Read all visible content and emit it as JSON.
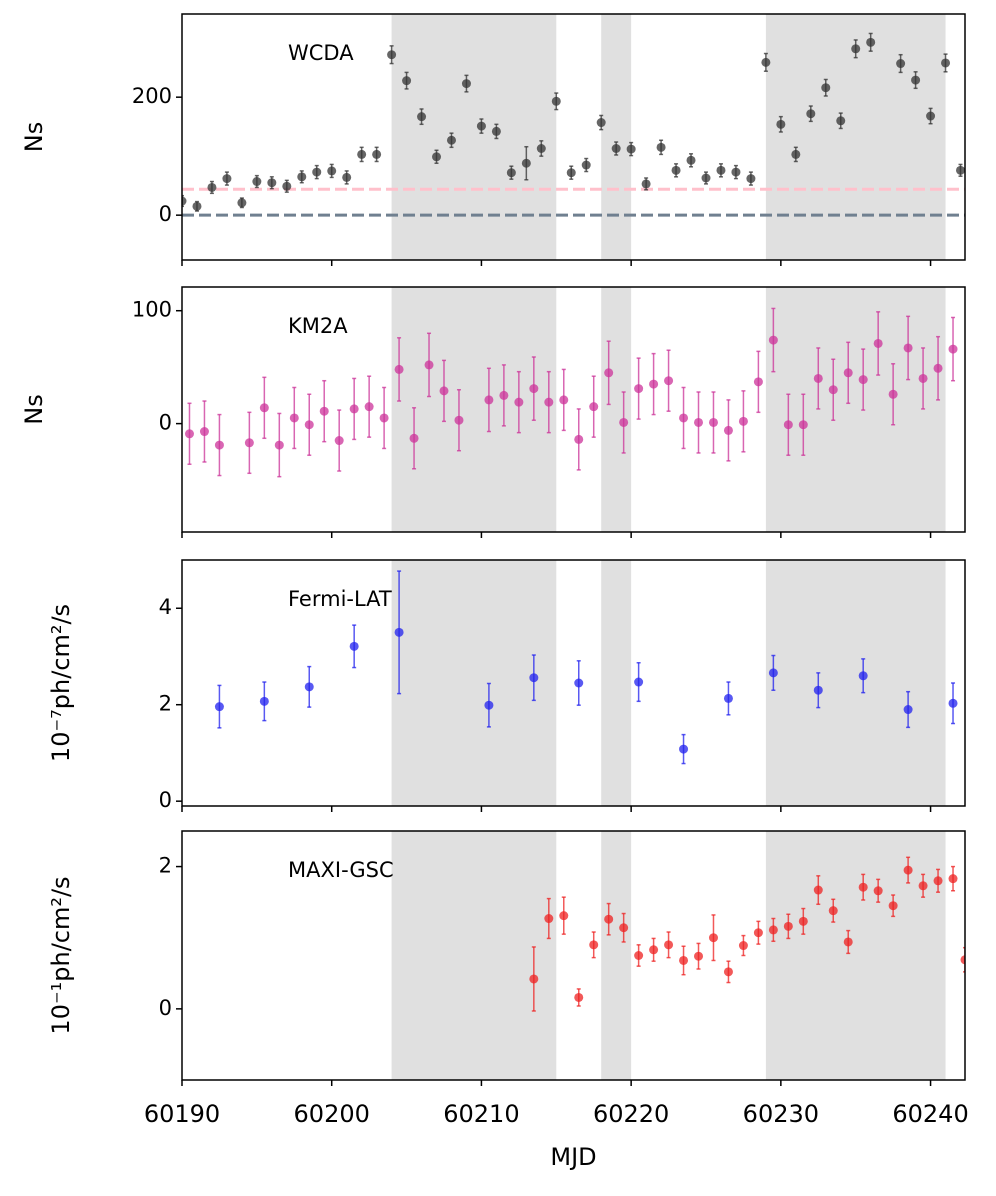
{
  "chart_data": [
    {
      "type": "scatter",
      "label": "WCDA",
      "ylabel": "Ns",
      "color": "#333333",
      "x": [
        60190,
        60191,
        60192,
        60193,
        60194,
        60195,
        60196,
        60197,
        60198,
        60199,
        60200,
        60201,
        60202,
        60203,
        60204,
        60205,
        60206,
        60207,
        60208,
        60209,
        60210,
        60211,
        60212,
        60213,
        60214,
        60215,
        60216,
        60217,
        60218,
        60219,
        60220,
        60221,
        60222,
        60223,
        60224,
        60225,
        60226,
        60227,
        60228,
        60229,
        60230,
        60231,
        60232,
        60233,
        60234,
        60235,
        60236,
        60238,
        60239,
        60240,
        60241,
        60242
      ],
      "values": [
        24,
        15,
        47,
        62,
        21,
        57,
        55,
        49,
        65,
        73,
        75,
        64,
        103,
        103,
        272,
        228,
        167,
        99,
        127,
        223,
        151,
        142,
        72,
        88,
        113,
        193,
        72,
        85,
        157,
        113,
        112,
        53,
        115,
        76,
        93,
        63,
        76,
        73,
        62,
        259,
        154,
        103,
        172,
        216,
        160,
        282,
        293,
        257,
        229,
        168,
        258,
        76
      ],
      "errors": [
        9,
        8,
        10,
        11,
        8,
        10,
        10,
        10,
        10,
        11,
        11,
        11,
        12,
        12,
        15,
        14,
        13,
        11,
        12,
        14,
        12,
        12,
        11,
        28,
        13,
        14,
        11,
        11,
        12,
        11,
        11,
        10,
        12,
        11,
        11,
        10,
        11,
        11,
        11,
        15,
        13,
        12,
        13,
        14,
        13,
        15,
        15,
        15,
        14,
        13,
        15,
        10
      ],
      "hlines": [
        {
          "value": 44,
          "color": "#ffc0cb"
        },
        {
          "value": 0,
          "color": "#708090"
        }
      ],
      "shaded": [
        [
          60204,
          60215
        ],
        [
          60218,
          60220
        ],
        [
          60229,
          60241
        ]
      ],
      "xlim": [
        60190,
        60242.3
      ],
      "xticks": [
        60190,
        60200,
        60210,
        60220,
        60230,
        60240
      ],
      "ylim": [
        -76,
        341
      ],
      "yticks": [
        0,
        200
      ]
    },
    {
      "type": "scatter",
      "label": "KM2A",
      "ylabel": "Ns",
      "color": "#cc3399",
      "x": [
        60190.5,
        60191.5,
        60192.5,
        60194.5,
        60195.5,
        60196.5,
        60197.5,
        60198.5,
        60199.5,
        60200.5,
        60201.5,
        60202.5,
        60203.5,
        60204.5,
        60205.5,
        60206.5,
        60207.5,
        60208.5,
        60210.5,
        60211.5,
        60212.5,
        60213.5,
        60214.5,
        60215.5,
        60216.5,
        60217.5,
        60218.5,
        60219.5,
        60220.5,
        60221.5,
        60222.5,
        60223.5,
        60224.5,
        60225.5,
        60226.5,
        60227.5,
        60228.5,
        60229.5,
        60230.5,
        60231.5,
        60232.5,
        60233.5,
        60234.5,
        60235.5,
        60236.5,
        60237.5,
        60238.5,
        60239.5,
        60240.5,
        60241.5
      ],
      "values": [
        -9,
        -7,
        -19,
        -17,
        14,
        -19,
        5,
        -1,
        11,
        -15,
        13,
        15,
        5,
        48,
        -13,
        52,
        29,
        3,
        21,
        25,
        19,
        31,
        19,
        21,
        -14,
        15,
        45,
        1,
        31,
        35,
        38,
        5,
        1,
        1,
        -6,
        2,
        37,
        74,
        -1,
        -1,
        40,
        30,
        45,
        39,
        71,
        26,
        67,
        40,
        49,
        66
      ],
      "errors": [
        27,
        27,
        27,
        27,
        27,
        28,
        27,
        27,
        27,
        27,
        27,
        27,
        27,
        28,
        27,
        28,
        27,
        27,
        28,
        27,
        27,
        28,
        27,
        27,
        27,
        27,
        28,
        27,
        27,
        27,
        27,
        27,
        27,
        27,
        27,
        27,
        27,
        28,
        27,
        27,
        27,
        27,
        27,
        27,
        28,
        27,
        28,
        27,
        28,
        28
      ],
      "shaded": [
        [
          60204,
          60215
        ],
        [
          60218,
          60220
        ],
        [
          60229,
          60241
        ]
      ],
      "xlim": [
        60190,
        60242.3
      ],
      "xticks": [
        60190,
        60200,
        60210,
        60220,
        60230,
        60240
      ],
      "ylim": [
        -96,
        121
      ],
      "yticks": [
        0,
        100
      ]
    },
    {
      "type": "scatter",
      "label": "Fermi-LAT",
      "ylabel": "10⁻⁷ph/cm²/s",
      "color": "#2222ee",
      "x": [
        60192.5,
        60195.5,
        60198.5,
        60201.5,
        60204.5,
        60210.5,
        60213.5,
        60216.5,
        60220.5,
        60223.5,
        60226.5,
        60229.5,
        60232.5,
        60235.5,
        60238.5,
        60241.5
      ],
      "values": [
        1.96,
        2.07,
        2.37,
        3.21,
        3.5,
        1.99,
        2.56,
        2.45,
        2.47,
        1.08,
        2.13,
        2.66,
        2.3,
        2.6,
        1.9,
        2.03
      ],
      "errors": [
        0.44,
        0.4,
        0.42,
        0.44,
        1.27,
        0.45,
        0.47,
        0.46,
        0.4,
        0.3,
        0.34,
        0.36,
        0.36,
        0.35,
        0.37,
        0.42
      ],
      "shaded": [
        [
          60204,
          60215
        ],
        [
          60218,
          60220
        ],
        [
          60229,
          60241
        ]
      ],
      "xlim": [
        60190,
        60242.3
      ],
      "xticks": [
        60190,
        60200,
        60210,
        60220,
        60230,
        60240
      ],
      "ylim": [
        -0.1,
        5.0
      ],
      "yticks": [
        0,
        2,
        4
      ]
    },
    {
      "type": "scatter",
      "label": "MAXI-GSC",
      "ylabel": "10⁻¹ph/cm²/s",
      "xlabel": "MJD",
      "color": "#ee2222",
      "x": [
        60213.5,
        60214.5,
        60215.5,
        60216.5,
        60217.5,
        60218.5,
        60219.5,
        60220.5,
        60221.5,
        60222.5,
        60223.5,
        60224.5,
        60225.5,
        60226.5,
        60227.5,
        60228.5,
        60229.5,
        60230.5,
        60231.5,
        60232.5,
        60233.5,
        60234.5,
        60235.5,
        60236.5,
        60237.5,
        60238.5,
        60239.5,
        60240.5,
        60241.5,
        60242.3
      ],
      "values": [
        0.42,
        1.27,
        1.31,
        0.16,
        0.9,
        1.26,
        1.14,
        0.75,
        0.83,
        0.9,
        0.68,
        0.74,
        1.0,
        0.52,
        0.89,
        1.07,
        1.11,
        1.16,
        1.23,
        1.67,
        1.38,
        0.94,
        1.71,
        1.66,
        1.45,
        1.95,
        1.73,
        1.8,
        1.83,
        0.69
      ],
      "errors": [
        0.45,
        0.28,
        0.26,
        0.12,
        0.18,
        0.22,
        0.2,
        0.15,
        0.16,
        0.18,
        0.2,
        0.18,
        0.32,
        0.15,
        0.14,
        0.16,
        0.16,
        0.17,
        0.18,
        0.2,
        0.16,
        0.16,
        0.18,
        0.16,
        0.15,
        0.18,
        0.16,
        0.16,
        0.17,
        0.17
      ],
      "shaded": [
        [
          60204,
          60215
        ],
        [
          60218,
          60220
        ],
        [
          60229,
          60241
        ]
      ],
      "xlim": [
        60190,
        60242.3
      ],
      "xticks": [
        60190,
        60200,
        60210,
        60220,
        60230,
        60240
      ],
      "ylim": [
        -1.0,
        2.5
      ],
      "yticks": [
        0,
        2
      ]
    }
  ]
}
